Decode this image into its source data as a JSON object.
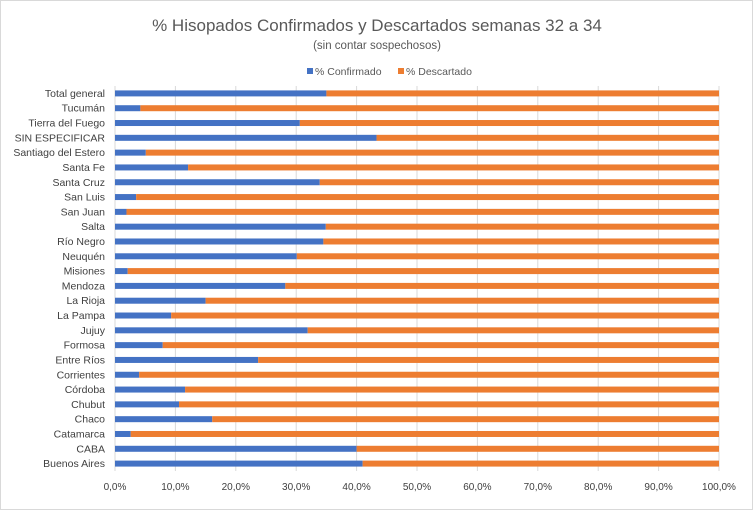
{
  "chart_data": {
    "type": "bar",
    "orientation": "horizontal",
    "stacked": true,
    "title": "% Hisopados Confirmados y Descartados semanas 32 a 34",
    "subtitle": "(sin contar sospechosos)",
    "legend_position": "top",
    "grid": true,
    "xlim": [
      0,
      100
    ],
    "x_ticks": [
      "0,0%",
      "10,0%",
      "20,0%",
      "30,0%",
      "40,0%",
      "50,0%",
      "60,0%",
      "70,0%",
      "80,0%",
      "90,0%",
      "100,0%"
    ],
    "categories": [
      "Total general",
      "Tucumán",
      "Tierra del Fuego",
      "SIN ESPECIFICAR",
      "Santiago del Estero",
      "Santa Fe",
      "Santa Cruz",
      "San Luis",
      "San Juan",
      "Salta",
      "Río Negro",
      "Neuquén",
      "Misiones",
      "Mendoza",
      "La Rioja",
      "La Pampa",
      "Jujuy",
      "Formosa",
      "Entre Ríos",
      "Corrientes",
      "Córdoba",
      "Chubut",
      "Chaco",
      "Catamarca",
      "CABA",
      "Buenos Aires"
    ],
    "series": [
      {
        "name": "% Confirmado",
        "color": "#4472c4",
        "values": [
          35.0,
          4.2,
          30.6,
          43.3,
          5.1,
          12.1,
          33.9,
          3.5,
          1.9,
          34.9,
          34.5,
          30.1,
          2.1,
          28.2,
          15.0,
          9.3,
          31.9,
          7.9,
          23.7,
          4.0,
          11.6,
          10.6,
          16.1,
          2.6,
          40.0,
          41.0
        ]
      },
      {
        "name": "% Descartado",
        "color": "#ed7d31",
        "values": [
          65.0,
          95.8,
          69.4,
          56.7,
          94.9,
          87.9,
          66.1,
          96.5,
          98.1,
          65.1,
          65.5,
          69.9,
          97.9,
          71.8,
          85.0,
          90.7,
          68.1,
          92.1,
          76.3,
          96.0,
          88.4,
          89.4,
          83.9,
          97.4,
          60.0,
          59.0
        ]
      }
    ]
  }
}
